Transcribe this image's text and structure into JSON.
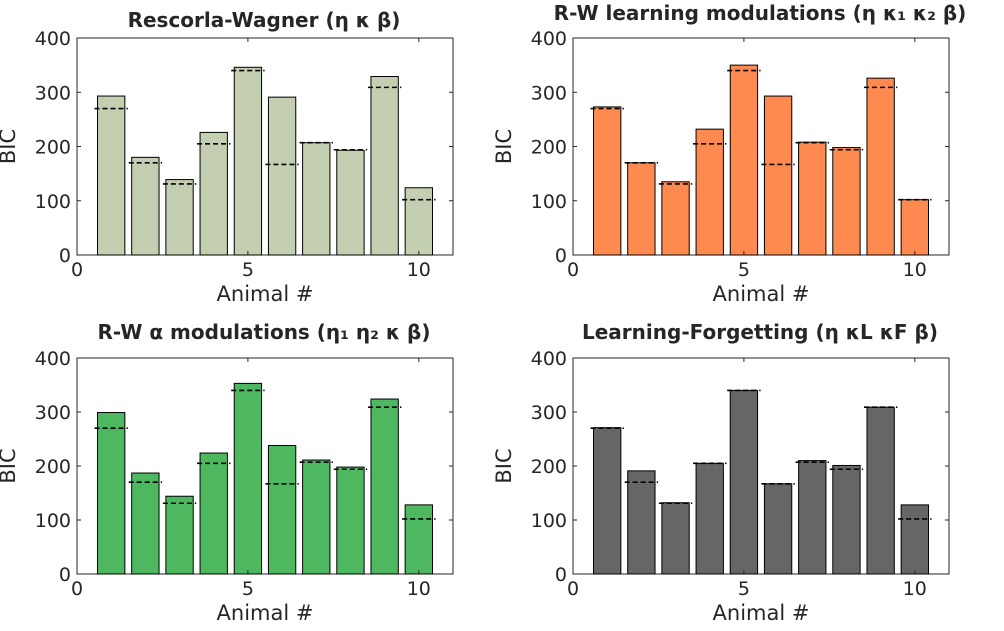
{
  "figure": {
    "panels": [
      {
        "title": "Rescorla-Wagner (η κ β)",
        "color": "#c4cfb1"
      },
      {
        "title": "R-W learning modulations (η κ₁ κ₂ β)",
        "color": "#ff8a4f"
      },
      {
        "title": "R-W α modulations (η₁ η₂ κ β)",
        "color": "#4db860"
      },
      {
        "title": "Learning-Forgetting (η κL κF β)",
        "color": "#666666"
      }
    ]
  },
  "chart_data": [
    {
      "type": "bar",
      "title": "Rescorla-Wagner (η κ β)",
      "xlabel": "Animal #",
      "ylabel": "BIC",
      "xlim": [
        0,
        11
      ],
      "ylim": [
        0,
        400
      ],
      "xticks": [
        0,
        5,
        10
      ],
      "yticks": [
        0,
        100,
        200,
        300,
        400
      ],
      "categories": [
        1,
        2,
        3,
        4,
        5,
        6,
        7,
        8,
        9,
        10
      ],
      "values": [
        293,
        180,
        139,
        226,
        346,
        291,
        207,
        193,
        329,
        124
      ],
      "reference_lines": [
        270,
        170,
        131,
        205,
        340,
        167,
        207,
        194,
        309,
        102
      ],
      "bar_color": "#c4cfb1"
    },
    {
      "type": "bar",
      "title": "R-W learning modulations (η κ₁ κ₂ β)",
      "xlabel": "Animal #",
      "ylabel": "BIC",
      "xlim": [
        0,
        11
      ],
      "ylim": [
        0,
        400
      ],
      "xticks": [
        0,
        5,
        10
      ],
      "yticks": [
        0,
        100,
        200,
        300,
        400
      ],
      "categories": [
        1,
        2,
        3,
        4,
        5,
        6,
        7,
        8,
        9,
        10
      ],
      "values": [
        273,
        170,
        135,
        232,
        350,
        293,
        208,
        198,
        326,
        102
      ],
      "reference_lines": [
        270,
        170,
        131,
        205,
        340,
        167,
        207,
        194,
        309,
        102
      ],
      "bar_color": "#ff8a4f"
    },
    {
      "type": "bar",
      "title": "R-W α modulations (η₁ η₂ κ β)",
      "xlabel": "Animal #",
      "ylabel": "BIC",
      "xlim": [
        0,
        11
      ],
      "ylim": [
        0,
        400
      ],
      "xticks": [
        0,
        5,
        10
      ],
      "yticks": [
        0,
        100,
        200,
        300,
        400
      ],
      "categories": [
        1,
        2,
        3,
        4,
        5,
        6,
        7,
        8,
        9,
        10
      ],
      "values": [
        299,
        187,
        144,
        224,
        353,
        238,
        211,
        198,
        324,
        128
      ],
      "reference_lines": [
        270,
        170,
        131,
        205,
        340,
        167,
        207,
        194,
        309,
        102
      ],
      "bar_color": "#4db860"
    },
    {
      "type": "bar",
      "title": "Learning-Forgetting (η κL κF β)",
      "xlabel": "Animal #",
      "ylabel": "BIC",
      "xlim": [
        0,
        11
      ],
      "ylim": [
        0,
        400
      ],
      "xticks": [
        0,
        5,
        10
      ],
      "yticks": [
        0,
        100,
        200,
        300,
        400
      ],
      "categories": [
        1,
        2,
        3,
        4,
        5,
        6,
        7,
        8,
        9,
        10
      ],
      "values": [
        271,
        191,
        132,
        205,
        340,
        167,
        210,
        201,
        309,
        128
      ],
      "reference_lines": [
        270,
        170,
        131,
        205,
        340,
        167,
        207,
        194,
        309,
        102
      ],
      "bar_color": "#666666"
    }
  ]
}
